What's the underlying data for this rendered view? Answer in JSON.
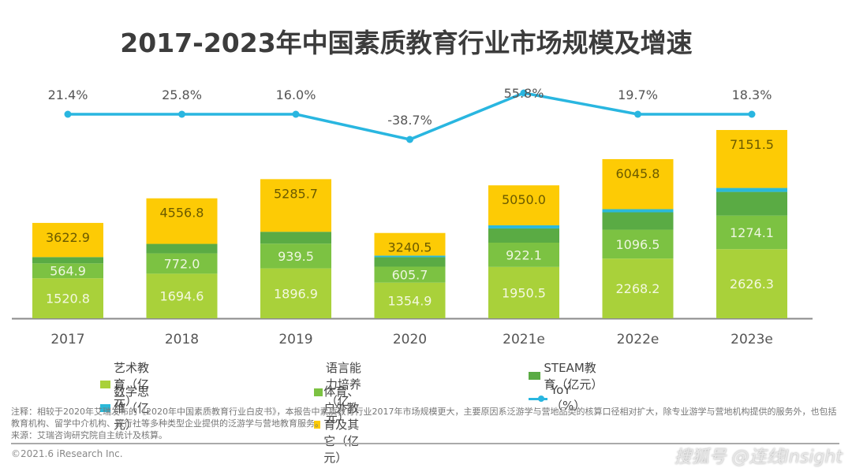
{
  "chart_data": {
    "type": "bar",
    "stacked": true,
    "title": "2017-2023年中国素质教育行业市场规模及增速",
    "categories": [
      "2017",
      "2018",
      "2019",
      "2020",
      "2021e",
      "2022e",
      "2023e"
    ],
    "series": [
      {
        "name": "艺术教育（亿元）",
        "color": "#a9d13a",
        "values": [
          1520.8,
          1694.6,
          1896.9,
          1354.9,
          1950.5,
          2268.2,
          2626.3
        ],
        "labels": [
          "1520.8",
          "1694.6",
          "1896.9",
          "1354.9",
          "1950.5",
          "2268.2",
          "2626.3"
        ]
      },
      {
        "name": "语言能力培养（亿元）",
        "color": "#7cc242",
        "values": [
          564.9,
          772.0,
          939.5,
          605.7,
          922.1,
          1096.5,
          1274.1
        ],
        "labels": [
          "564.9",
          "772.0",
          "939.5",
          "605.7",
          "922.1",
          "1096.5",
          "1274.1"
        ]
      },
      {
        "name": "STEAM教育（亿元）",
        "color": "#5aab44",
        "values": [
          240,
          360,
          450,
          360,
          540,
          660,
          900
        ],
        "labels": [
          "",
          "",
          "",
          "",
          "",
          "",
          ""
        ]
      },
      {
        "name": "数学思维（亿元）",
        "color": "#2bb9d9",
        "values": [
          0,
          0,
          0,
          60,
          120,
          120,
          150
        ],
        "labels": [
          "",
          "",
          "",
          "",
          "",
          "",
          ""
        ]
      },
      {
        "name": "体育、户外教育及其它（亿元）",
        "color": "#fdcb05",
        "values": [
          1297.2,
          1730.2,
          1999.3,
          859.9,
          1517.4,
          1901.1,
          2201.1
        ],
        "labels": [
          "3622.9",
          "4556.8",
          "5285.7",
          "3240.5",
          "5050.0",
          "6045.8",
          "7151.5"
        ]
      }
    ],
    "totals": [
      3622.9,
      4556.8,
      5285.7,
      3240.5,
      5050.0,
      6045.8,
      7151.5
    ],
    "line_series": {
      "name": "YoY（%）",
      "color": "#29b6e0",
      "values": [
        21.4,
        25.8,
        16.0,
        -38.7,
        55.8,
        19.7,
        18.3
      ],
      "labels": [
        "21.4%",
        "25.8%",
        "16.0%",
        "-38.7%",
        "55.8%",
        "19.7%",
        "18.3%"
      ]
    },
    "xlabel": "",
    "ylabel": "",
    "ylim": [
      0,
      7200
    ],
    "grid": false,
    "legend_position": "bottom"
  },
  "legend": [
    {
      "label": "艺术教育（亿元）",
      "color": "#a9d13a",
      "kind": "bar"
    },
    {
      "label": "语言能力培养（亿元）",
      "color": "#7cc242",
      "kind": "bar"
    },
    {
      "label": "STEAM教育（亿元）",
      "color": "#5aab44",
      "kind": "bar"
    },
    {
      "label": "数学思维（亿元）",
      "color": "#2bb9d9",
      "kind": "bar"
    },
    {
      "label": "体育、户外教育及其它（亿元）",
      "color": "#fdcb05",
      "kind": "bar"
    },
    {
      "label": "YoY（%）",
      "color": "#29b6e0",
      "kind": "line"
    }
  ],
  "footer": {
    "note": "注释：相较于2020年艾瑞发布的《2020年中国素质教育行业白皮书》，本报告中素质教育行业2017年市场规模更大，主要原因系泛游学与营地品类的核算口径相对扩大，除专业游学与营地机构提供的服务外，也包括教育机构、留学中介机构、旅行社等多种类型企业提供的泛游学与营地教育服务。",
    "source": "来源：艾瑞咨询研究院自主统计及核算。",
    "copyright": "©2021.6 iResearch Inc.",
    "watermark": "搜狐号 @连线Insight"
  }
}
